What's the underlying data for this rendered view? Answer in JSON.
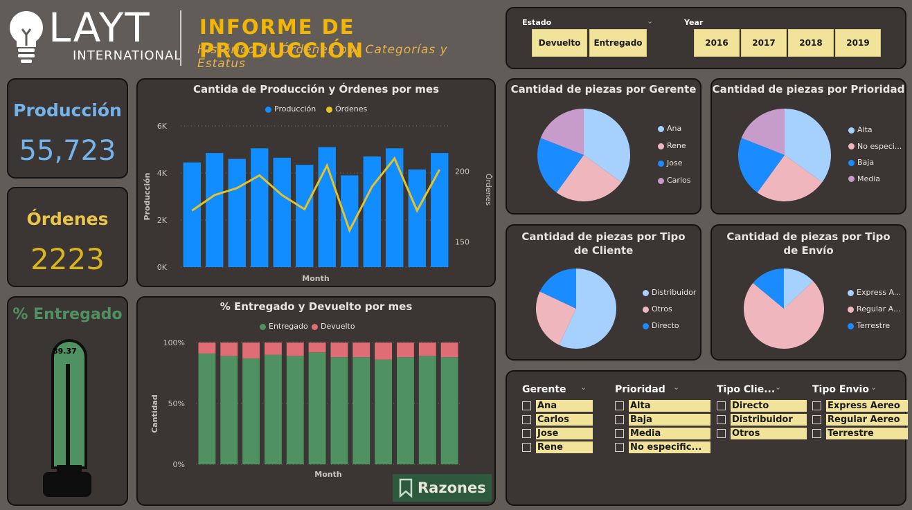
{
  "header": {
    "logo_word": "LAYT",
    "logo_sub": "INTERNATIONAL",
    "title": "INFORME DE PRODUCCIÓN",
    "subtitle": "Histórico de Órdenes por Categorías y Estatus"
  },
  "filters": {
    "estado_label": "Estado",
    "estado_options": [
      "Devuelto",
      "Entregado"
    ],
    "year_label": "Year",
    "year_options": [
      "2016",
      "2017",
      "2018",
      "2019"
    ]
  },
  "kpis": {
    "produccion_label": "Producción",
    "produccion_value": "55,723",
    "ordenes_label": "Órdenes",
    "ordenes_value": "2223",
    "entregado_label": "% Entregado",
    "entregado_value": "89.37",
    "entregado_fraction": 0.8937
  },
  "colors": {
    "blue": "#118dff",
    "gold": "#e6c229",
    "green": "#4f9160",
    "red": "#e06c75",
    "pie_light_blue": "#a6d1ff",
    "pie_pink": "#efb7bd",
    "pie_blue": "#1a8cff",
    "pie_purple": "#c79ccb"
  },
  "charts": {
    "prod_ord": {
      "title": "Cantida de Producción y Órdenes por mes",
      "legend": [
        "Producción",
        "Órdenes"
      ],
      "xlabel": "Month",
      "ylabel": "Producción",
      "y2label": "Órdenes",
      "yticks": [
        "0K",
        "2K",
        "4K",
        "6K"
      ],
      "y2ticks": [
        "150",
        "200"
      ]
    },
    "pct": {
      "title": "% Entregado y Devuelto por mes",
      "legend": [
        "Entregado",
        "Devuelto"
      ],
      "xlabel": "Month",
      "ylabel": "Cantidad",
      "yticks": [
        "0%",
        "50%",
        "100%"
      ]
    },
    "gerente": {
      "title": "Cantidad de piezas por Gerente",
      "legend": [
        "Ana",
        "Rene",
        "Jose",
        "Carlos"
      ]
    },
    "prioridad": {
      "title": "Cantidad de piezas por Prioridad",
      "legend": [
        "Alta",
        "No especi...",
        "Baja",
        "Media"
      ]
    },
    "tipo_cliente": {
      "title": "Cantidad de piezas por Tipo de Cliente",
      "legend": [
        "Distribuidor",
        "Otros",
        "Directo"
      ]
    },
    "tipo_envio": {
      "title": "Cantidad de piezas por Tipo de Envío",
      "legend": [
        "Express A...",
        "Regular A...",
        "Terrestre"
      ]
    }
  },
  "chart_data": [
    {
      "type": "bar",
      "title": "Cantida de Producción y Órdenes por mes",
      "xlabel": "Month",
      "ylabel": "Producción",
      "ylim": [
        0,
        6000
      ],
      "series": [
        {
          "name": "Producción",
          "values": [
            4450,
            4850,
            4600,
            5050,
            4650,
            4350,
            5100,
            3900,
            4700,
            5050,
            4150,
            4850
          ]
        },
        {
          "name": "Órdenes",
          "values": [
            172,
            183,
            188,
            197,
            183,
            173,
            204,
            158,
            189,
            209,
            172,
            201
          ]
        }
      ],
      "y2lim": [
        132,
        232
      ]
    },
    {
      "type": "bar",
      "title": "% Entregado y Devuelto por mes",
      "xlabel": "Month",
      "ylabel": "Cantidad",
      "ylim": [
        0,
        100
      ],
      "series": [
        {
          "name": "Entregado",
          "values": [
            91,
            89,
            87,
            90,
            89,
            92,
            88,
            88,
            86,
            88,
            89,
            88
          ]
        },
        {
          "name": "Devuelto",
          "values": [
            9,
            11,
            13,
            10,
            11,
            8,
            12,
            12,
            14,
            12,
            11,
            12
          ]
        }
      ]
    },
    {
      "type": "pie",
      "title": "Cantidad de piezas por Gerente",
      "categories": [
        "Ana",
        "Rene",
        "Jose",
        "Carlos"
      ],
      "values": [
        35,
        25,
        21,
        19
      ]
    },
    {
      "type": "pie",
      "title": "Cantidad de piezas por Prioridad",
      "categories": [
        "Alta",
        "No especi...",
        "Baja",
        "Media"
      ],
      "values": [
        35,
        25,
        21,
        19
      ]
    },
    {
      "type": "pie",
      "title": "Cantidad de piezas por Tipo de Cliente",
      "categories": [
        "Distribuidor",
        "Otros",
        "Directo"
      ],
      "values": [
        57,
        25,
        18
      ]
    },
    {
      "type": "pie",
      "title": "Cantidad de piezas por Tipo de Envío",
      "categories": [
        "Express A...",
        "Regular A...",
        "Terrestre"
      ],
      "values": [
        13,
        73,
        14
      ]
    }
  ],
  "slicers": [
    {
      "head": "Gerente",
      "items": [
        "Ana",
        "Carlos",
        "Jose",
        "Rene"
      ]
    },
    {
      "head": "Prioridad",
      "items": [
        "Alta",
        "Baja",
        "Media",
        "No especific..."
      ]
    },
    {
      "head": "Tipo Clie...",
      "items": [
        "Directo",
        "Distribuidor",
        "Otros"
      ]
    },
    {
      "head": "Tipo Envio",
      "items": [
        "Express Aereo",
        "Regular Aereo",
        "Terrestre"
      ]
    }
  ],
  "razones_label": "Razones",
  "icons": {
    "logo": "lightbulb-icon",
    "bookmark": "bookmark-icon",
    "chevron": "chevron-down-icon"
  }
}
